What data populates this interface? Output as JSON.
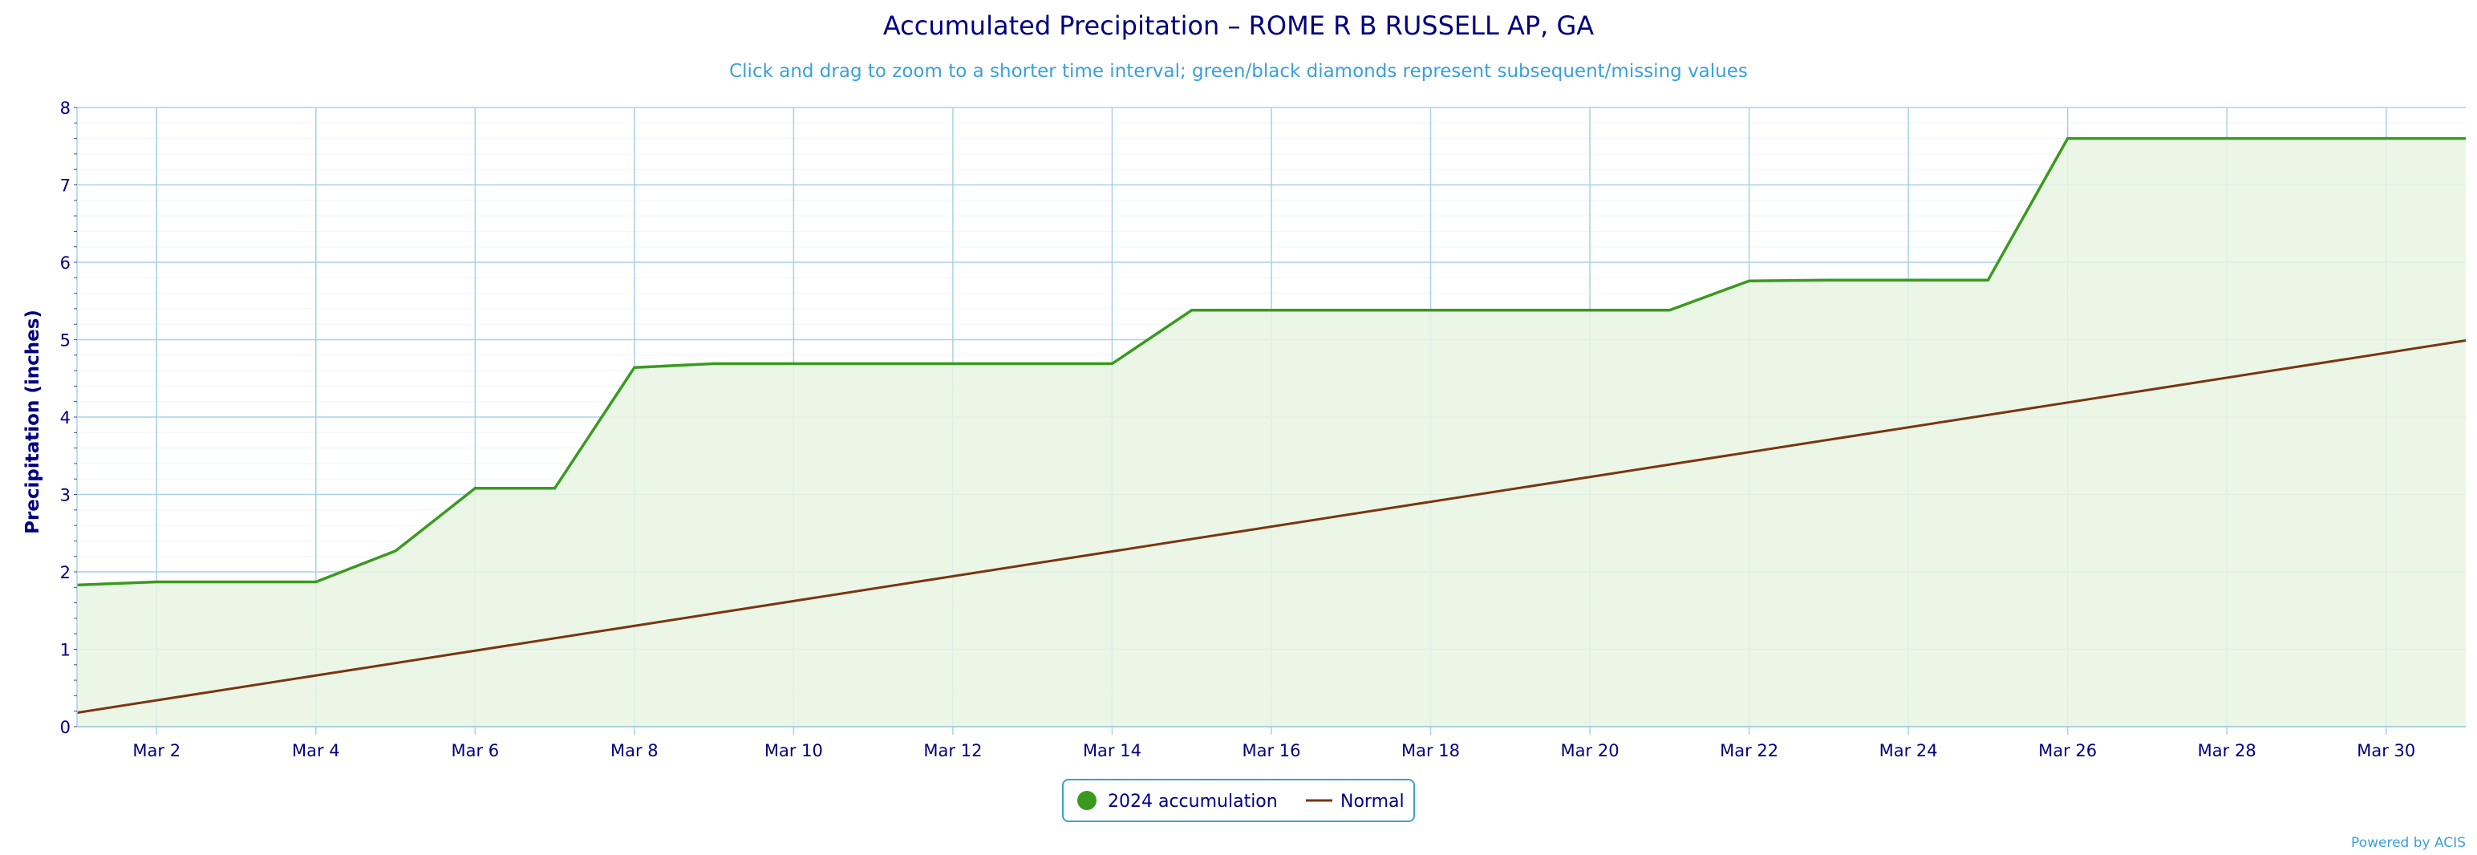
{
  "colors": {
    "accumulation_line": "#3a9a1e",
    "accumulation_fill": "#e8f4e3",
    "normal_line": "#7a3510",
    "grid": "#a8d1e8",
    "text": "#000080",
    "subtitle": "#3aa0d8"
  },
  "chart_data": {
    "type": "area",
    "title": "Accumulated Precipitation – ROME R B RUSSELL AP, GA",
    "subtitle": "Click and drag to zoom to a shorter time interval; green/black diamonds represent subsequent/missing values",
    "ylabel": "Precipitation (inches)",
    "xlabel": "",
    "ylim": [
      0,
      8
    ],
    "yticks": [
      "0",
      "1",
      "2",
      "3",
      "4",
      "5",
      "6",
      "7",
      "8"
    ],
    "xlim": [
      "2024-03-01",
      "2024-03-31"
    ],
    "xticks": [
      {
        "date": "2024-03-02",
        "label": "Mar 2"
      },
      {
        "date": "2024-03-04",
        "label": "Mar 4"
      },
      {
        "date": "2024-03-06",
        "label": "Mar 6"
      },
      {
        "date": "2024-03-08",
        "label": "Mar 8"
      },
      {
        "date": "2024-03-10",
        "label": "Mar 10"
      },
      {
        "date": "2024-03-12",
        "label": "Mar 12"
      },
      {
        "date": "2024-03-14",
        "label": "Mar 14"
      },
      {
        "date": "2024-03-16",
        "label": "Mar 16"
      },
      {
        "date": "2024-03-18",
        "label": "Mar 18"
      },
      {
        "date": "2024-03-20",
        "label": "Mar 20"
      },
      {
        "date": "2024-03-22",
        "label": "Mar 22"
      },
      {
        "date": "2024-03-24",
        "label": "Mar 24"
      },
      {
        "date": "2024-03-26",
        "label": "Mar 26"
      },
      {
        "date": "2024-03-28",
        "label": "Mar 28"
      },
      {
        "date": "2024-03-30",
        "label": "Mar 30"
      }
    ],
    "grid": true,
    "legend_position": "bottom-center",
    "series": [
      {
        "name": "2024 accumulation",
        "x": [
          "2024-03-01",
          "2024-03-02",
          "2024-03-03",
          "2024-03-04",
          "2024-03-05",
          "2024-03-06",
          "2024-03-07",
          "2024-03-08",
          "2024-03-09",
          "2024-03-10",
          "2024-03-11",
          "2024-03-12",
          "2024-03-13",
          "2024-03-14",
          "2024-03-15",
          "2024-03-16",
          "2024-03-17",
          "2024-03-18",
          "2024-03-19",
          "2024-03-20",
          "2024-03-21",
          "2024-03-22",
          "2024-03-23",
          "2024-03-24",
          "2024-03-25",
          "2024-03-26",
          "2024-03-27",
          "2024-03-28",
          "2024-03-29",
          "2024-03-30",
          "2024-03-31"
        ],
        "values": [
          1.83,
          1.87,
          1.87,
          1.87,
          2.27,
          3.08,
          3.08,
          4.64,
          4.69,
          4.69,
          4.69,
          4.69,
          4.69,
          4.69,
          5.38,
          5.38,
          5.38,
          5.38,
          5.38,
          5.38,
          5.38,
          5.76,
          5.77,
          5.77,
          5.77,
          7.6,
          7.6,
          7.6,
          7.6,
          7.6,
          7.6
        ]
      },
      {
        "name": "Normal",
        "x": [
          "2024-03-01",
          "2024-03-31"
        ],
        "values": [
          0.18,
          4.99
        ]
      }
    ]
  },
  "legend": {
    "accumulation_label": "2024 accumulation",
    "normal_label": "Normal"
  },
  "credits": "Powered by ACIS"
}
